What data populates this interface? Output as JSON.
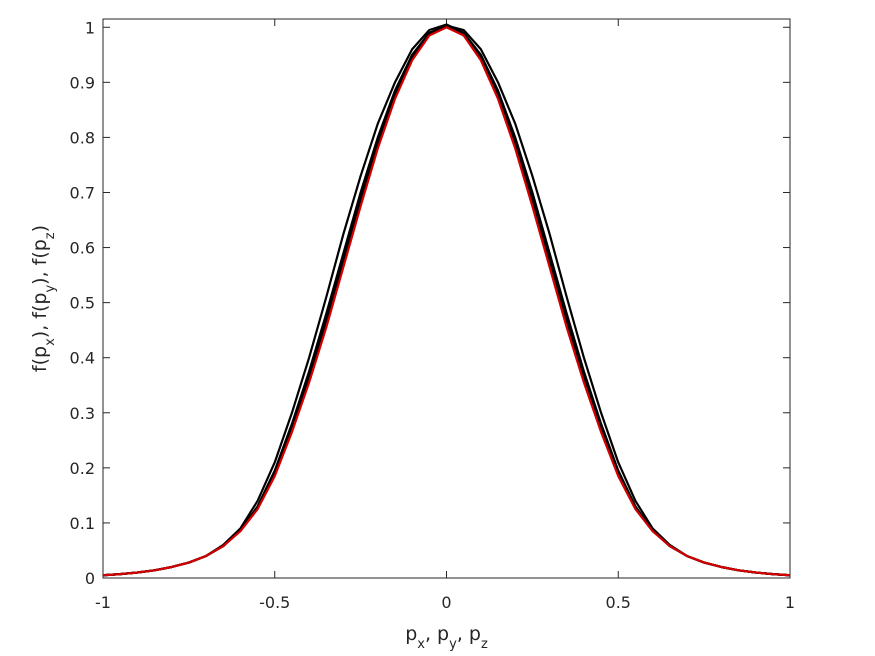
{
  "chart_data": {
    "type": "line",
    "xlabel": [
      {
        "text": "p"
      },
      {
        "text": "x",
        "sub": true
      },
      {
        "text": ", p"
      },
      {
        "text": "y",
        "sub": true
      },
      {
        "text": ", p"
      },
      {
        "text": "z",
        "sub": true
      }
    ],
    "ylabel": [
      {
        "text": "f(p"
      },
      {
        "text": "x",
        "sub": true
      },
      {
        "text": "), f(p"
      },
      {
        "text": "y",
        "sub": true
      },
      {
        "text": "), f(p"
      },
      {
        "text": "z",
        "sub": true
      },
      {
        "text": ")"
      }
    ],
    "x": [
      -1,
      -0.95,
      -0.9,
      -0.85,
      -0.8,
      -0.75,
      -0.7,
      -0.65,
      -0.6,
      -0.55,
      -0.5,
      -0.45,
      -0.4,
      -0.35,
      -0.3,
      -0.25,
      -0.2,
      -0.15,
      -0.1,
      -0.05,
      0,
      0.05,
      0.1,
      0.15,
      0.2,
      0.25,
      0.3,
      0.35,
      0.4,
      0.45,
      0.5,
      0.55,
      0.6,
      0.65,
      0.7,
      0.75,
      0.8,
      0.85,
      0.9,
      0.95,
      1
    ],
    "series": [
      {
        "color": "#000000",
        "values": [
          0.005,
          0.007,
          0.01,
          0.014,
          0.02,
          0.028,
          0.04,
          0.06,
          0.09,
          0.14,
          0.21,
          0.3,
          0.4,
          0.51,
          0.625,
          0.73,
          0.825,
          0.9,
          0.96,
          0.995,
          1.005,
          0.99,
          0.95,
          0.885,
          0.8,
          0.7,
          0.59,
          0.48,
          0.375,
          0.28,
          0.195,
          0.13,
          0.087,
          0.058,
          0.04,
          0.028,
          0.02,
          0.014,
          0.01,
          0.007,
          0.005
        ]
      },
      {
        "color": "#000000",
        "values": [
          0.005,
          0.007,
          0.01,
          0.014,
          0.02,
          0.028,
          0.04,
          0.058,
          0.087,
          0.13,
          0.195,
          0.28,
          0.375,
          0.48,
          0.59,
          0.7,
          0.8,
          0.885,
          0.95,
          0.99,
          1.0,
          0.99,
          0.945,
          0.88,
          0.79,
          0.69,
          0.58,
          0.47,
          0.365,
          0.27,
          0.19,
          0.128,
          0.086,
          0.058,
          0.04,
          0.028,
          0.02,
          0.014,
          0.01,
          0.007,
          0.005
        ]
      },
      {
        "color": "#000000",
        "values": [
          0.005,
          0.007,
          0.01,
          0.014,
          0.02,
          0.028,
          0.04,
          0.058,
          0.086,
          0.128,
          0.19,
          0.27,
          0.365,
          0.47,
          0.58,
          0.69,
          0.79,
          0.88,
          0.945,
          0.99,
          1.003,
          0.995,
          0.96,
          0.9,
          0.825,
          0.73,
          0.625,
          0.51,
          0.4,
          0.3,
          0.21,
          0.14,
          0.09,
          0.06,
          0.04,
          0.028,
          0.02,
          0.014,
          0.01,
          0.007,
          0.005
        ]
      },
      {
        "color": "#000000",
        "values": [
          0.005,
          0.007,
          0.01,
          0.014,
          0.02,
          0.028,
          0.04,
          0.058,
          0.086,
          0.128,
          0.19,
          0.27,
          0.36,
          0.46,
          0.57,
          0.68,
          0.785,
          0.873,
          0.942,
          0.986,
          1.0,
          0.986,
          0.942,
          0.873,
          0.785,
          0.68,
          0.57,
          0.46,
          0.36,
          0.27,
          0.19,
          0.128,
          0.086,
          0.058,
          0.04,
          0.028,
          0.02,
          0.014,
          0.01,
          0.007,
          0.005
        ]
      },
      {
        "color": "#d40000",
        "values": [
          0.005,
          0.007,
          0.01,
          0.014,
          0.02,
          0.028,
          0.04,
          0.058,
          0.085,
          0.125,
          0.185,
          0.265,
          0.355,
          0.455,
          0.565,
          0.675,
          0.78,
          0.87,
          0.94,
          0.985,
          1,
          0.985,
          0.94,
          0.87,
          0.78,
          0.675,
          0.565,
          0.455,
          0.355,
          0.265,
          0.185,
          0.125,
          0.085,
          0.058,
          0.04,
          0.028,
          0.02,
          0.014,
          0.01,
          0.007,
          0.005
        ]
      }
    ],
    "xlim": [
      -1,
      1
    ],
    "ylim": [
      0,
      1.015
    ],
    "xticks": [
      -1,
      -0.5,
      0,
      0.5,
      1
    ],
    "yticks": [
      0,
      0.1,
      0.2,
      0.3,
      0.4,
      0.5,
      0.6,
      0.7,
      0.8,
      0.9,
      1
    ],
    "grid": false
  }
}
